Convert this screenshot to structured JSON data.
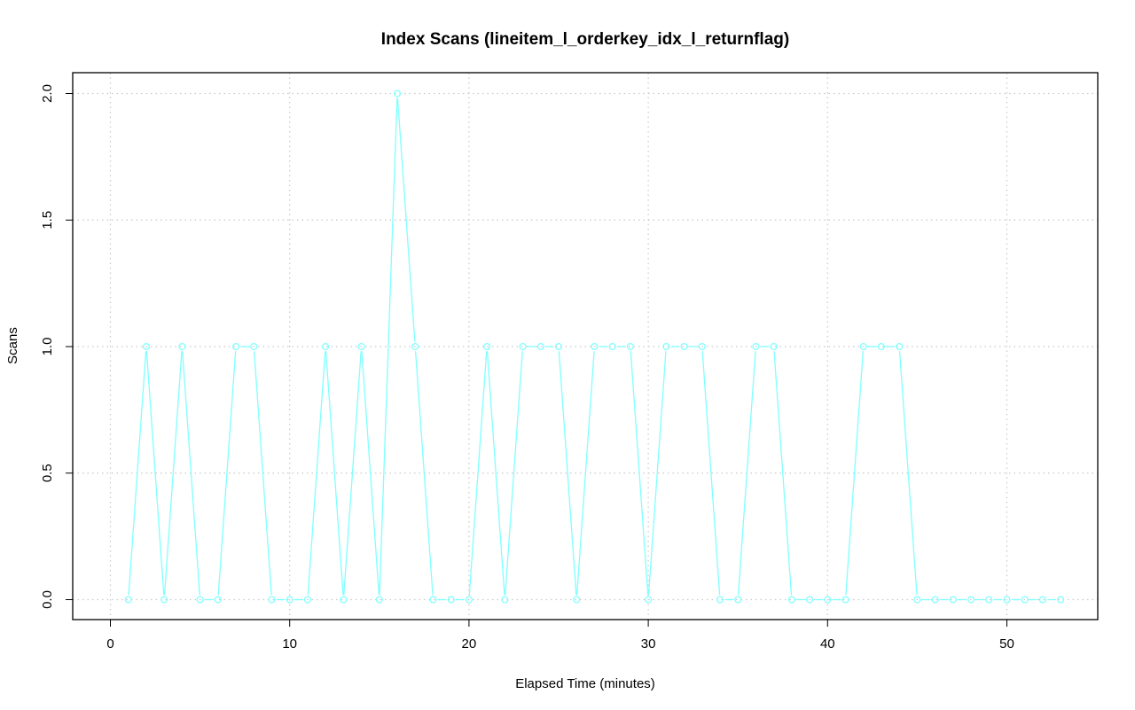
{
  "chart_data": {
    "type": "line",
    "title": "Index Scans (lineitem_l_orderkey_idx_l_returnflag)",
    "xlabel": "Elapsed Time (minutes)",
    "ylabel": "Scans",
    "xlim": [
      0,
      55
    ],
    "ylim": [
      0,
      2
    ],
    "x_ticks": [
      0,
      10,
      20,
      30,
      40,
      50
    ],
    "x_tick_labels": [
      "0",
      "10",
      "20",
      "30",
      "40",
      "50"
    ],
    "y_ticks": [
      0,
      0.5,
      1,
      1.5,
      2
    ],
    "y_tick_labels": [
      "0.0",
      "0.5",
      "1.0",
      "1.5",
      "2.0"
    ],
    "grid": true,
    "series": [
      {
        "color": "#80ffff",
        "marker": "open-circle",
        "x": [
          1,
          2,
          3,
          4,
          5,
          6,
          7,
          8,
          9,
          10,
          11,
          12,
          13,
          14,
          15,
          16,
          17,
          18,
          19,
          20,
          21,
          22,
          23,
          24,
          25,
          26,
          27,
          28,
          29,
          30,
          31,
          32,
          33,
          34,
          35,
          36,
          37,
          38,
          39,
          40,
          41,
          42,
          43,
          44,
          45,
          46,
          47,
          48,
          49,
          50,
          51,
          52,
          53
        ],
        "values": [
          0,
          1,
          0,
          1,
          0,
          0,
          1,
          1,
          0,
          0,
          0,
          1,
          0,
          1,
          0,
          2,
          1,
          0,
          0,
          0,
          1,
          0,
          1,
          1,
          1,
          0,
          1,
          1,
          1,
          0,
          1,
          1,
          1,
          0,
          0,
          1,
          1,
          0,
          0,
          0,
          0,
          1,
          1,
          1,
          0,
          0,
          0,
          0,
          0,
          0,
          0,
          0,
          0
        ]
      }
    ]
  }
}
